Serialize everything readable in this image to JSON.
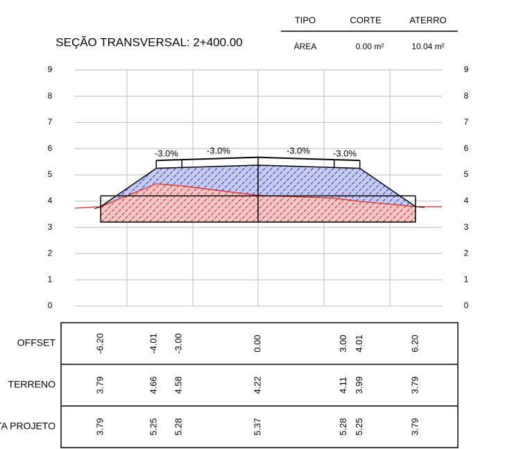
{
  "title": "SEÇÃO TRANSVERSAL: 2+400.00",
  "summary": {
    "headers": [
      "TIPO",
      "CORTE",
      "ATERRO"
    ],
    "row": [
      "ÁREA",
      "0.00 m²",
      "10.04 m²"
    ]
  },
  "yticks": [
    0,
    1,
    2,
    3,
    4,
    5,
    6,
    7,
    8,
    9
  ],
  "slopes": [
    "-3.0%",
    "-3.0%",
    "-3.0%",
    "-3.0%"
  ],
  "table": {
    "rows": [
      {
        "label": "OFFSET",
        "values": [
          "-6.20",
          "-4.01",
          "-3.00",
          "0.00",
          "3.00",
          "4.01",
          "6.20"
        ]
      },
      {
        "label": "TERRENO",
        "values": [
          "3.79",
          "4.66",
          "4.58",
          "4.22",
          "4.11",
          "3.99",
          "3.79"
        ]
      },
      {
        "label": "COTA PROJETO",
        "values": [
          "3.79",
          "5.25",
          "5.28",
          "5.37",
          "5.28",
          "5.25",
          "3.79"
        ]
      }
    ]
  }
}
